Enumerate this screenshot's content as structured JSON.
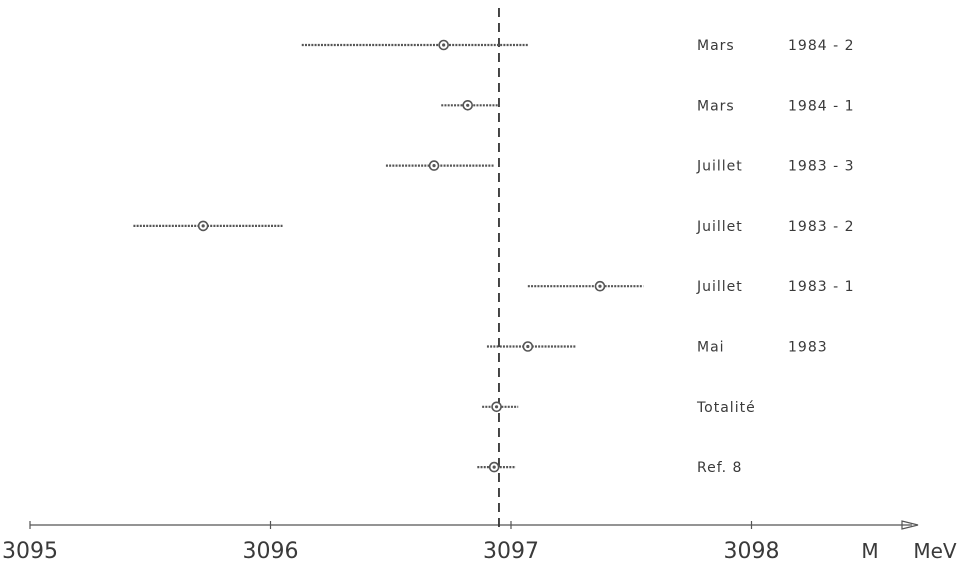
{
  "chart_data": {
    "type": "scatter",
    "subtype": "forest-plot-horizontal-error-bars",
    "xlabel": "M",
    "xunit": "MeV",
    "xlim": [
      3095,
      3098.3
    ],
    "xticks": [
      "3095",
      "3096",
      "3097",
      "3098"
    ],
    "reference_line": {
      "x": 3096.95,
      "style": "dashed"
    },
    "grid": false,
    "legend": "none",
    "colors": {
      "ink": "#555555",
      "text": "#3a3a3a"
    },
    "rows": [
      {
        "period": "Mars",
        "year": "1984 - 2",
        "value": 3096.72,
        "err_low": 3096.13,
        "err_high": 3097.07
      },
      {
        "period": "Mars",
        "year": "1984 - 1",
        "value": 3096.82,
        "err_low": 3096.71,
        "err_high": 3096.95
      },
      {
        "period": "Juillet",
        "year": "1983 - 3",
        "value": 3096.68,
        "err_low": 3096.48,
        "err_high": 3096.93
      },
      {
        "period": "Juillet",
        "year": "1983 - 2",
        "value": 3095.72,
        "err_low": 3095.43,
        "err_high": 3096.05
      },
      {
        "period": "Juillet",
        "year": "1983 - 1",
        "value": 3097.37,
        "err_low": 3097.07,
        "err_high": 3097.55
      },
      {
        "period": "Mai",
        "year": "1983",
        "value": 3097.07,
        "err_low": 3096.9,
        "err_high": 3097.27
      },
      {
        "period": "Totalité",
        "year": "",
        "value": 3096.94,
        "err_low": 3096.88,
        "err_high": 3097.03
      },
      {
        "period": "Ref. 8",
        "year": "",
        "value": 3096.93,
        "err_low": 3096.86,
        "err_high": 3097.02
      }
    ]
  }
}
